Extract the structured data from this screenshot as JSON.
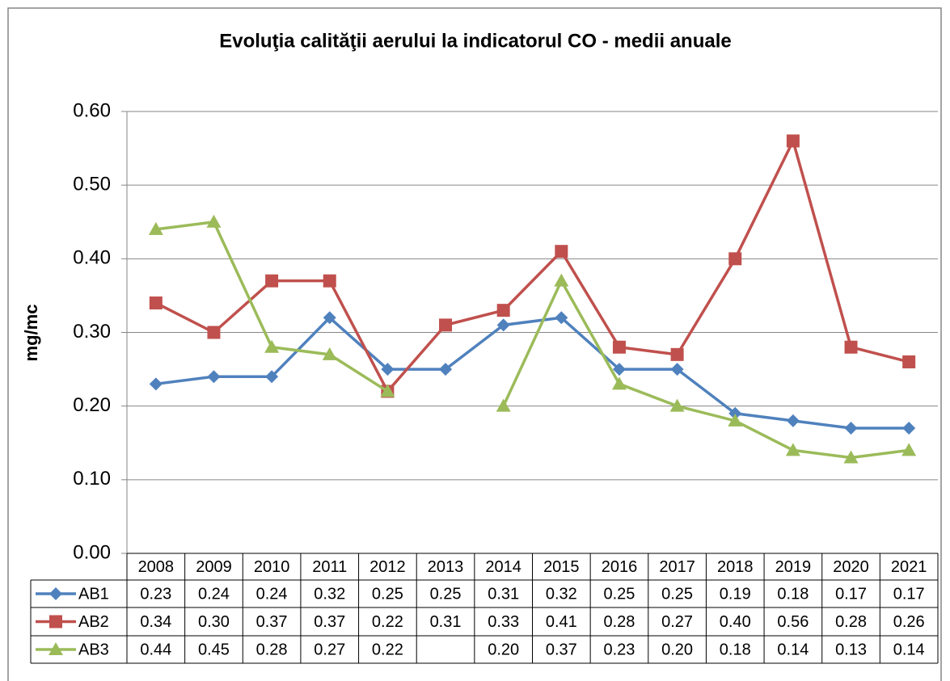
{
  "chart_data": {
    "type": "line",
    "title": "Evoluţia calităţii aerului la indicatorul CO - medii anuale",
    "y_label": "mg/mc",
    "categories": [
      "2008",
      "2009",
      "2010",
      "2011",
      "2012",
      "2013",
      "2014",
      "2015",
      "2016",
      "2017",
      "2018",
      "2019",
      "2020",
      "2021"
    ],
    "series": [
      {
        "name": "AB1",
        "color": "#4f81bd",
        "marker": "diamond",
        "values": [
          0.23,
          0.24,
          0.24,
          0.32,
          0.25,
          0.25,
          0.31,
          0.32,
          0.25,
          0.25,
          0.19,
          0.18,
          0.17,
          0.17
        ],
        "value_labels": [
          "0.23",
          "0.24",
          "0.24",
          "0.32",
          "0.25",
          "0.25",
          "0.31",
          "0.32",
          "0.25",
          "0.25",
          "0.19",
          "0.18",
          "0.17",
          "0.17"
        ]
      },
      {
        "name": "AB2",
        "color": "#c0504d",
        "marker": "square",
        "values": [
          0.34,
          0.3,
          0.37,
          0.37,
          0.22,
          0.31,
          0.33,
          0.41,
          0.28,
          0.27,
          0.4,
          0.56,
          0.28,
          0.26
        ],
        "value_labels": [
          "0.34",
          "0.30",
          "0.37",
          "0.37",
          "0.22",
          "0.31",
          "0.33",
          "0.41",
          "0.28",
          "0.27",
          "0.40",
          "0.56",
          "0.28",
          "0.26"
        ]
      },
      {
        "name": "AB3",
        "color": "#9bbb59",
        "marker": "triangle",
        "values": [
          0.44,
          0.45,
          0.28,
          0.27,
          0.22,
          null,
          0.2,
          0.37,
          0.23,
          0.2,
          0.18,
          0.14,
          0.13,
          0.14
        ],
        "value_labels": [
          "0.44",
          "0.45",
          "0.28",
          "0.27",
          "0.22",
          null,
          "0.20",
          "0.37",
          "0.23",
          "0.20",
          "0.18",
          "0.14",
          "0.13",
          "0.14"
        ]
      }
    ],
    "ylim": [
      0,
      0.6
    ],
    "yticks": [
      {
        "value": 0,
        "label": "0.00"
      },
      {
        "value": 0.1,
        "label": "0.10"
      },
      {
        "value": 0.2,
        "label": "0.20"
      },
      {
        "value": 0.3,
        "label": "0.30"
      },
      {
        "value": 0.4,
        "label": "0.40"
      },
      {
        "value": 0.5,
        "label": "0.50"
      },
      {
        "value": 0.6,
        "label": "0.60"
      }
    ],
    "grid": true,
    "data_table": true
  }
}
